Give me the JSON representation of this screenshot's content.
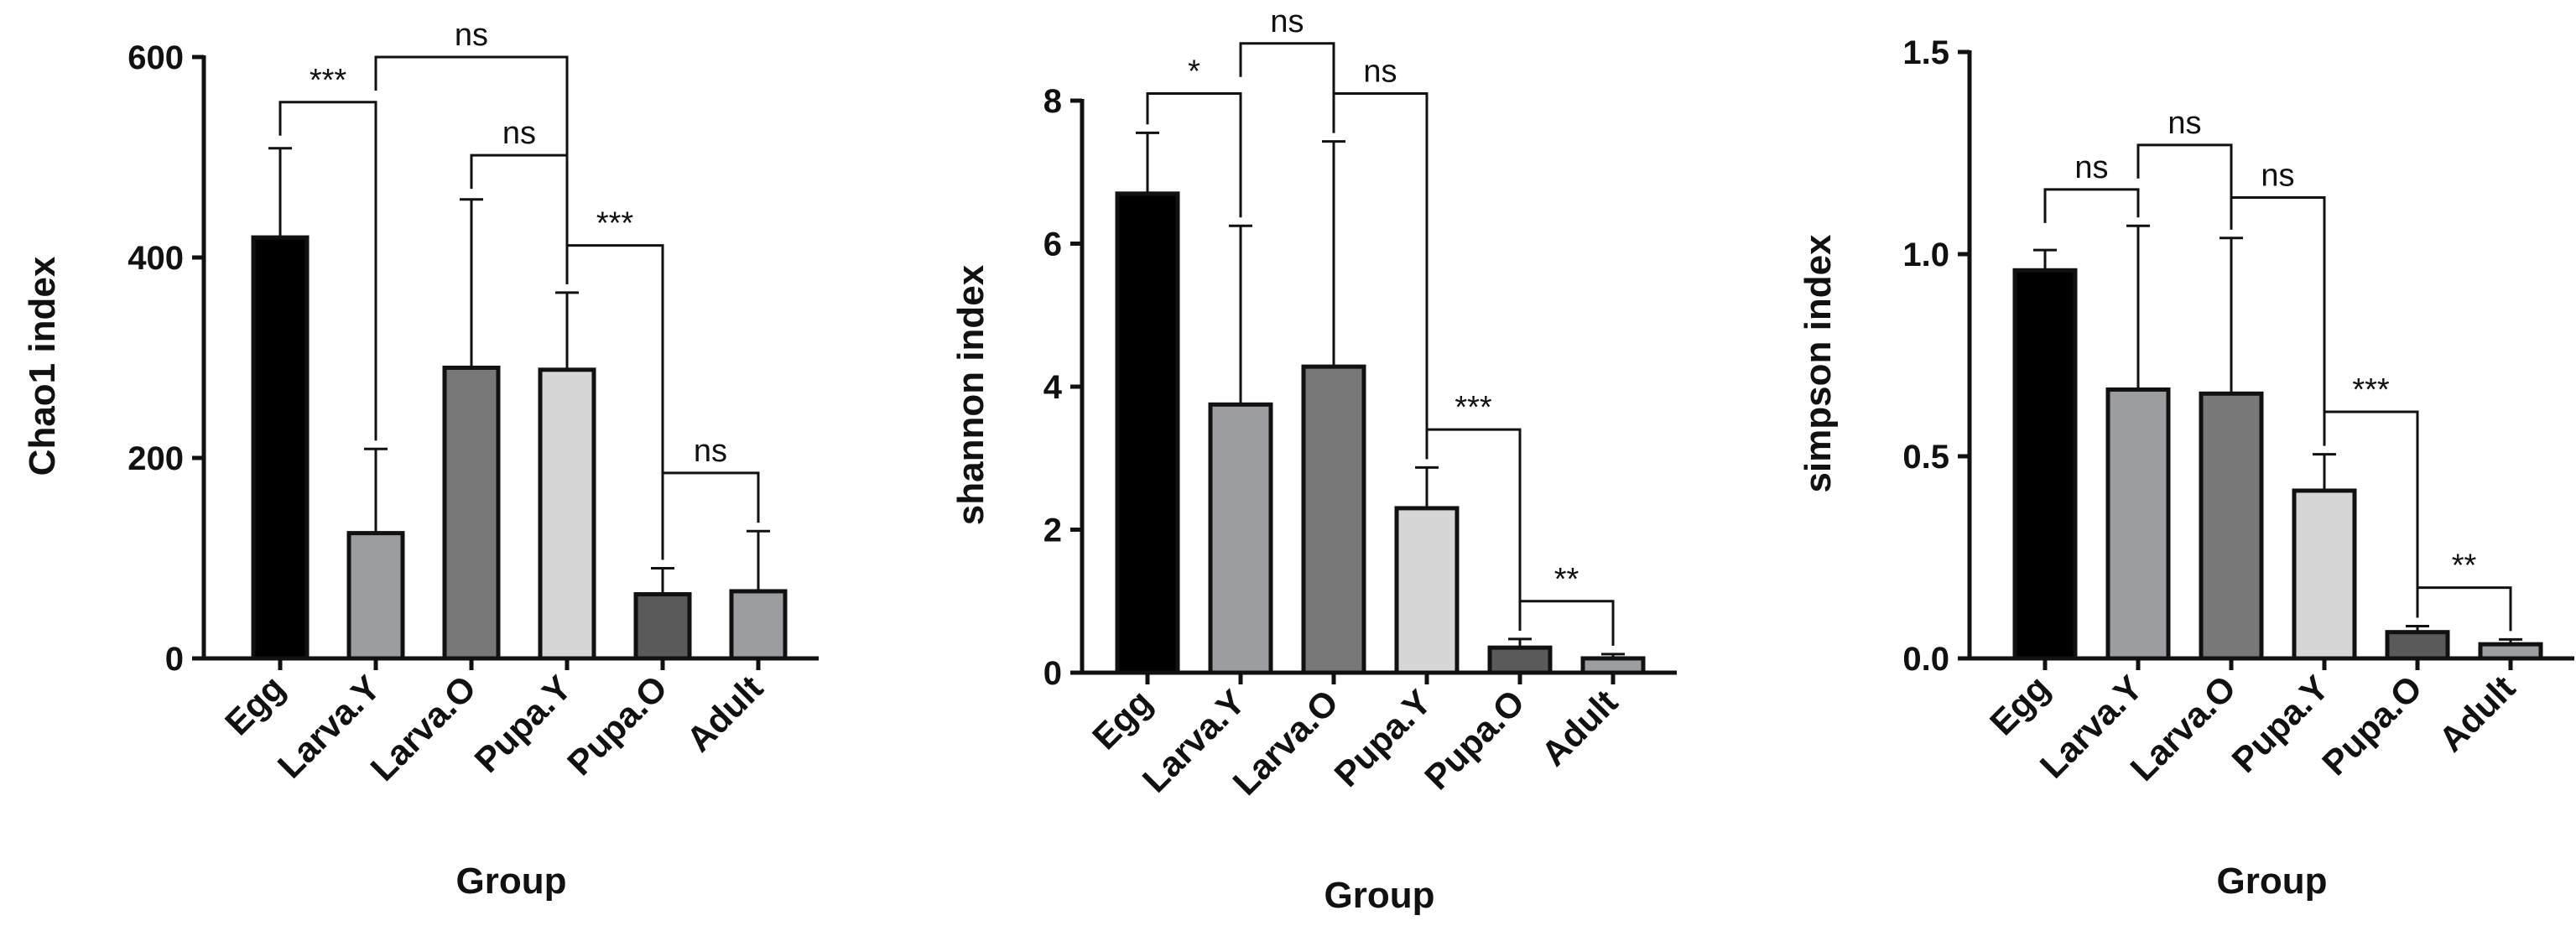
{
  "chart_data": [
    {
      "type": "bar",
      "categories": [
        "Egg",
        "Larva.Y",
        "Larva.O",
        "Pupa.Y",
        "Pupa.O",
        "Adult"
      ],
      "values": [
        420,
        125,
        290,
        288,
        64,
        67
      ],
      "error": [
        89,
        84,
        168,
        77,
        26,
        60
      ],
      "ylim": [
        0,
        600
      ],
      "yticks": [
        "0",
        "200",
        "400",
        "600"
      ],
      "xlabel": "Group",
      "ylabel": "Chao1 index",
      "significance": [
        {
          "from": 0,
          "to": 1,
          "label": "***",
          "y": 555
        },
        {
          "from": 1,
          "to": 3,
          "label": "ns",
          "y": 600
        },
        {
          "from": 2,
          "to": 3,
          "label": "ns",
          "y": 502
        },
        {
          "from": 3,
          "to": 4,
          "label": "***",
          "y": 412
        },
        {
          "from": 4,
          "to": 5,
          "label": "ns",
          "y": 185
        }
      ]
    },
    {
      "type": "bar",
      "categories": [
        "Egg",
        "Larva.Y",
        "Larva.O",
        "Pupa.Y",
        "Pupa.O",
        "Adult"
      ],
      "values": [
        6.7,
        3.75,
        4.28,
        2.3,
        0.35,
        0.2
      ],
      "error": [
        0.85,
        2.5,
        3.15,
        0.57,
        0.12,
        0.06
      ],
      "ylim": [
        0,
        8
      ],
      "yticks": [
        "0",
        "2",
        "4",
        "6",
        "8"
      ],
      "xlabel": "Group",
      "ylabel": "shannon index",
      "significance": [
        {
          "from": 0,
          "to": 1,
          "label": "*",
          "y": 8.1
        },
        {
          "from": 1,
          "to": 2,
          "label": "ns",
          "y": 8.8
        },
        {
          "from": 2,
          "to": 3,
          "label": "ns",
          "y": 8.1
        },
        {
          "from": 3,
          "to": 4,
          "label": "***",
          "y": 3.4
        },
        {
          "from": 4,
          "to": 5,
          "label": "**",
          "y": 1.0
        }
      ]
    },
    {
      "type": "bar",
      "categories": [
        "Egg",
        "Larva.Y",
        "Larva.O",
        "Pupa.Y",
        "Pupa.O",
        "Adult"
      ],
      "values": [
        0.96,
        0.665,
        0.655,
        0.415,
        0.065,
        0.035
      ],
      "error": [
        0.05,
        0.405,
        0.385,
        0.09,
        0.015,
        0.012
      ],
      "ylim": [
        0,
        1.5
      ],
      "yticks": [
        "0.0",
        "0.5",
        "1.0",
        "1.5"
      ],
      "xlabel": "Group",
      "ylabel": "simpson index",
      "significance": [
        {
          "from": 0,
          "to": 1,
          "label": "ns",
          "y": 1.16
        },
        {
          "from": 1,
          "to": 2,
          "label": "ns",
          "y": 1.27
        },
        {
          "from": 2,
          "to": 3,
          "label": "ns",
          "y": 1.14
        },
        {
          "from": 3,
          "to": 4,
          "label": "***",
          "y": 0.61
        },
        {
          "from": 4,
          "to": 5,
          "label": "**",
          "y": 0.175
        }
      ]
    }
  ],
  "colors": {
    "bars": [
      "#000000",
      "#9c9da1",
      "#787878",
      "#d6d6d6",
      "#5a5a5a",
      "#9c9da1"
    ],
    "outline": "#111111"
  }
}
